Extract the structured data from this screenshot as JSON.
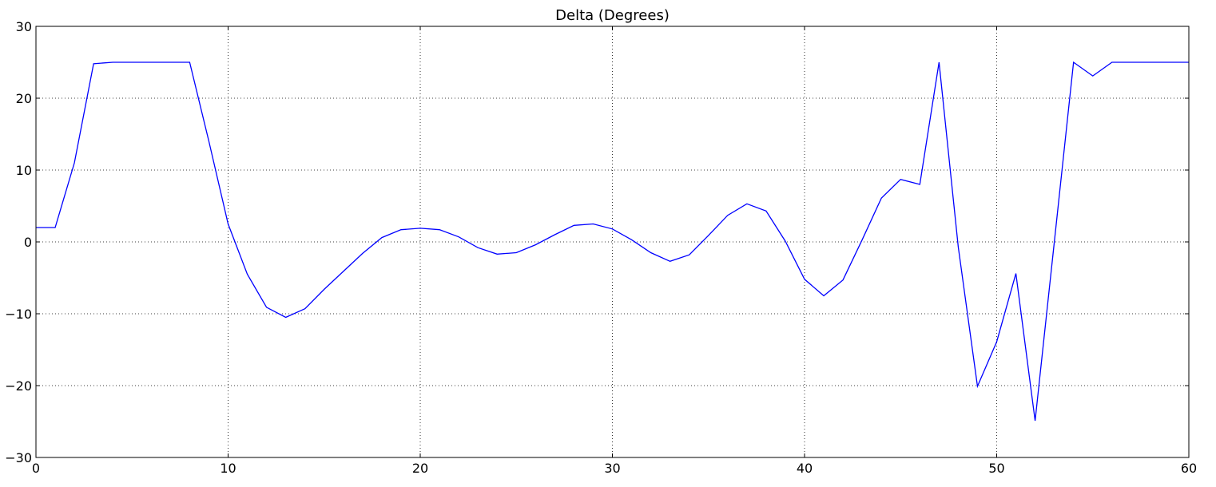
{
  "chart_data": {
    "type": "line",
    "title": "Delta (Degrees)",
    "xlabel": "",
    "ylabel": "",
    "xlim": [
      0,
      60
    ],
    "ylim": [
      -30,
      30
    ],
    "xticks": [
      0,
      10,
      20,
      30,
      40,
      50,
      60
    ],
    "yticks": [
      -30,
      -20,
      -10,
      0,
      10,
      20,
      30
    ],
    "xtick_labels": [
      "0",
      "10",
      "20",
      "30",
      "40",
      "50",
      "60"
    ],
    "ytick_labels": [
      "−30",
      "−20",
      "−10",
      "0",
      "10",
      "20",
      "30"
    ],
    "grid": true,
    "legend": "none",
    "line_color": "#0000ff",
    "series": [
      {
        "x": [
          0,
          1,
          2,
          3,
          4,
          5,
          6,
          7,
          8,
          9,
          10,
          11,
          12,
          13,
          14,
          15,
          16,
          17,
          18,
          19,
          20,
          21,
          22,
          23,
          24,
          25,
          26,
          27,
          28,
          29,
          30,
          31,
          32,
          33,
          34,
          35,
          36,
          37,
          38,
          39,
          40,
          41,
          42,
          43,
          44,
          45,
          46,
          47,
          48,
          49,
          50,
          51,
          52,
          53,
          54,
          55,
          56,
          57,
          58,
          59,
          60
        ],
        "values": [
          2,
          2,
          11,
          24.8,
          25,
          25,
          25,
          25,
          25,
          14,
          2.5,
          -4.5,
          -9.1,
          -10.5,
          -9.3,
          -6.6,
          -4.1,
          -1.6,
          0.6,
          1.7,
          1.9,
          1.7,
          0.7,
          -0.8,
          -1.7,
          -1.5,
          -0.4,
          1.0,
          2.3,
          2.5,
          1.8,
          0.3,
          -1.5,
          -2.7,
          -1.8,
          0.9,
          3.7,
          5.3,
          4.3,
          0.1,
          -5.2,
          -7.5,
          -5.3,
          0.3,
          6.1,
          8.7,
          8.0,
          25,
          -0.7,
          -20.1,
          -13.9,
          -4.4,
          -24.9,
          0,
          25,
          23.1,
          25,
          25,
          25,
          25,
          25
        ]
      }
    ]
  }
}
